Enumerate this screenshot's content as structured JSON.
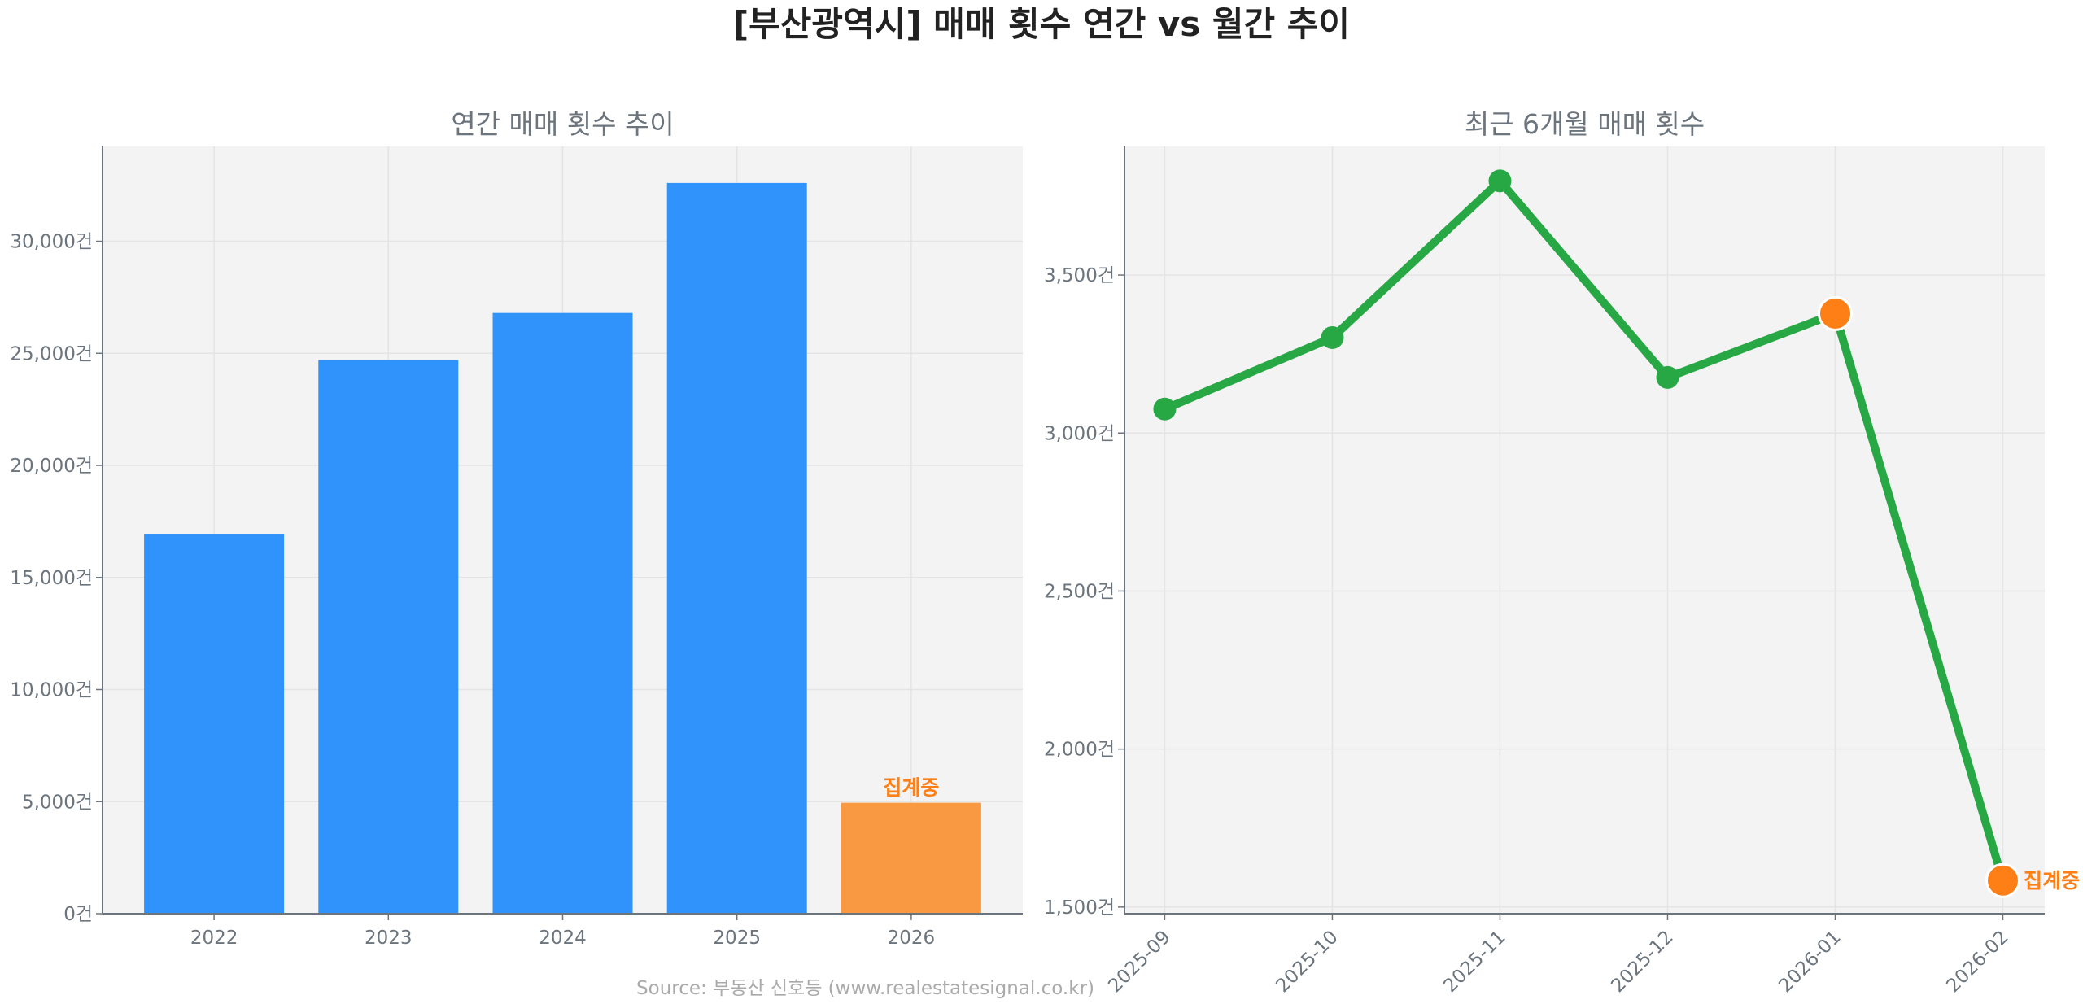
{
  "title": "[부산광역시] 매매 횟수 연간 vs 월간 추이",
  "source": "Source: 부동산 신호등 (www.realestatesignal.co.kr)",
  "colors": {
    "bar": "#3092fb",
    "bar_partial": "#f99941",
    "line": "#28a745",
    "partial_marker": "#fd7f16",
    "plot_bg": "#f3f3f3",
    "grid": "#e4e4e4",
    "axis": "#6c757d"
  },
  "chart_data": [
    {
      "type": "bar",
      "title": "연간 매매 횟수 추이",
      "categories": [
        "2022",
        "2023",
        "2024",
        "2025",
        "2026"
      ],
      "values": [
        16950,
        24700,
        26800,
        32600,
        4950
      ],
      "partial_index": 4,
      "annotation": "집계중",
      "ylim": [
        0,
        34230
      ],
      "yticks": [
        0,
        5000,
        10000,
        15000,
        20000,
        25000,
        30000
      ],
      "ytick_labels": [
        "0건",
        "5,000건",
        "10,000건",
        "15,000건",
        "20,000건",
        "25,000건",
        "30,000건"
      ],
      "grid": true
    },
    {
      "type": "line",
      "title": "최근 6개월 매매 횟수",
      "categories": [
        "2025-09",
        "2025-10",
        "2025-11",
        "2025-12",
        "2026-01",
        "2026-02"
      ],
      "values": [
        3076,
        3302,
        3798,
        3176,
        3378,
        1584
      ],
      "highlight_indices": [
        4,
        5
      ],
      "annotation": "집계중",
      "ylim": [
        1479,
        3907
      ],
      "yticks": [
        1500,
        2000,
        2500,
        3000,
        3500
      ],
      "ytick_labels": [
        "1,500건",
        "2,000건",
        "2,500건",
        "3,000건",
        "3,500건"
      ],
      "grid": true
    }
  ]
}
